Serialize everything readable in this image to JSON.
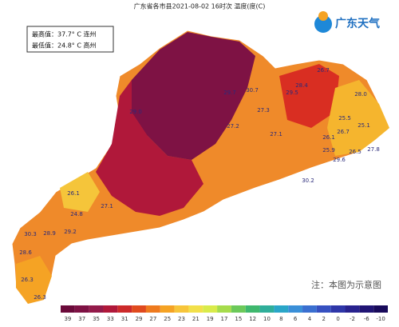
{
  "header": {
    "title": "广东省各市县2021-08-02 16时次 温度(度(C)",
    "logo": "广东天气"
  },
  "info": {
    "max": "最高值：37.7° C 连州",
    "min": "最低值：24.8° C 高州"
  },
  "stations": [
    "26.7",
    "28.0",
    "29.7",
    "30.7",
    "28.4",
    "29.0",
    "27.3",
    "29.5",
    "27.2",
    "27.1",
    "25.5",
    "26.7",
    "25.1",
    "26.1",
    "25.9",
    "26.5",
    "27.8",
    "29.6",
    "26.1",
    "24.8",
    "27.1",
    "30.2",
    "28.9",
    "30.3",
    "29.2",
    "28.6",
    "26.3",
    "26.3"
  ],
  "note": "注：本图为示意图",
  "colorbar": {
    "labels": [
      "39",
      "37",
      "35",
      "33",
      "31",
      "29",
      "27",
      "25",
      "23",
      "21",
      "19",
      "17",
      "15",
      "12",
      "10",
      "8",
      "6",
      "4",
      "2",
      "0",
      "-2",
      "-6",
      "-10"
    ],
    "colors": [
      "#6b0a3a",
      "#7e1244",
      "#931a4a",
      "#b0183a",
      "#cc2a2a",
      "#e04a1e",
      "#ee7a1e",
      "#f5a324",
      "#f7c53a",
      "#f2e04a",
      "#d9eb4a",
      "#a6dc4c",
      "#6cc95a",
      "#3fb86e",
      "#2fae9a",
      "#2aa6c8",
      "#3a8fd8",
      "#3a6fd0",
      "#3650c0",
      "#2e36a8",
      "#28228e",
      "#201474",
      "#180a5a"
    ]
  }
}
